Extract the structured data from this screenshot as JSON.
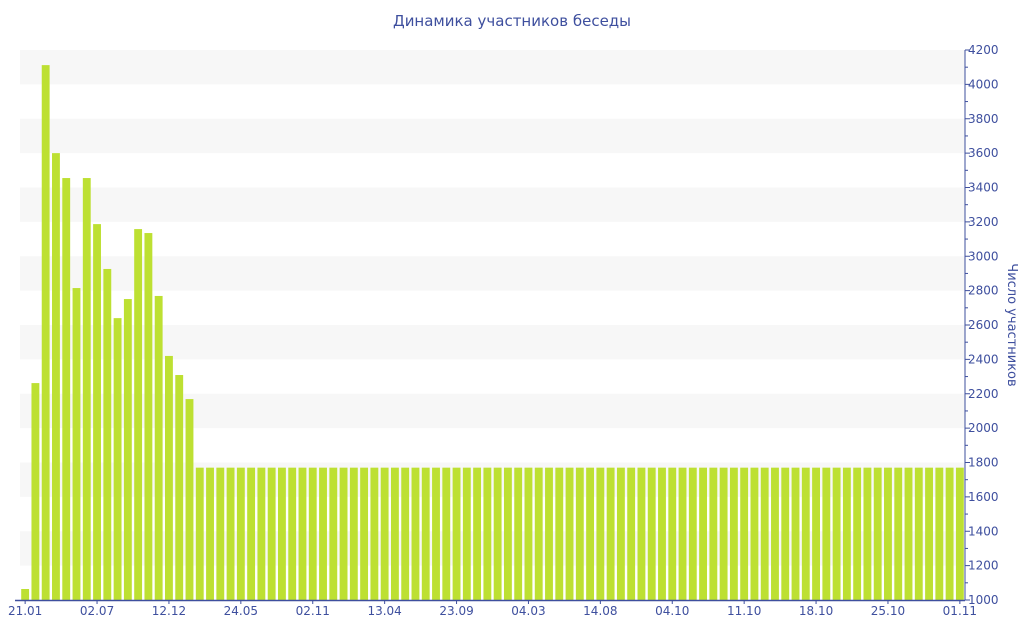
{
  "chart_data": {
    "type": "bar",
    "title": "Динамика участников беседы",
    "xlabel": "",
    "ylabel": "Число участников",
    "ylim": [
      1000,
      4200
    ],
    "y_ticks": [
      1000,
      1200,
      1400,
      1600,
      1800,
      2000,
      2200,
      2400,
      2600,
      2800,
      3000,
      3200,
      3400,
      3600,
      3800,
      4000,
      4200
    ],
    "y_axis_side": "right",
    "grid": "alternating horizontal bands",
    "x_tick_labels": [
      "21.01",
      "02.07",
      "12.12",
      "24.05",
      "02.11",
      "13.04",
      "23.09",
      "04.03",
      "14.08",
      "04.10",
      "11.10",
      "18.10",
      "25.10",
      "01.11"
    ],
    "x_tick_every_n_bars": 7,
    "values": [
      1064,
      2262,
      4112,
      3600,
      3455,
      2815,
      3455,
      3187,
      2926,
      2640,
      2751,
      3158,
      3135,
      2769,
      2420,
      2309,
      2169,
      1770,
      1770,
      1770,
      1770,
      1770,
      1770,
      1770,
      1770,
      1770,
      1770,
      1770,
      1770,
      1770,
      1770,
      1770,
      1770,
      1770,
      1770,
      1770,
      1770,
      1770,
      1770,
      1770,
      1770,
      1770,
      1770,
      1770,
      1770,
      1770,
      1770,
      1770,
      1770,
      1770,
      1770,
      1770,
      1770,
      1770,
      1770,
      1770,
      1770,
      1770,
      1770,
      1770,
      1770,
      1770,
      1770,
      1770,
      1770,
      1770,
      1770,
      1770,
      1770,
      1770,
      1770,
      1770,
      1770,
      1770,
      1770,
      1770,
      1770,
      1770,
      1770,
      1770,
      1770,
      1770,
      1770,
      1770,
      1770,
      1770,
      1770,
      1770,
      1770,
      1770,
      1770,
      1770
    ],
    "colors": {
      "bar": "#bde032",
      "axis": "#3e4f9e",
      "band": "#f7f7f7"
    }
  }
}
